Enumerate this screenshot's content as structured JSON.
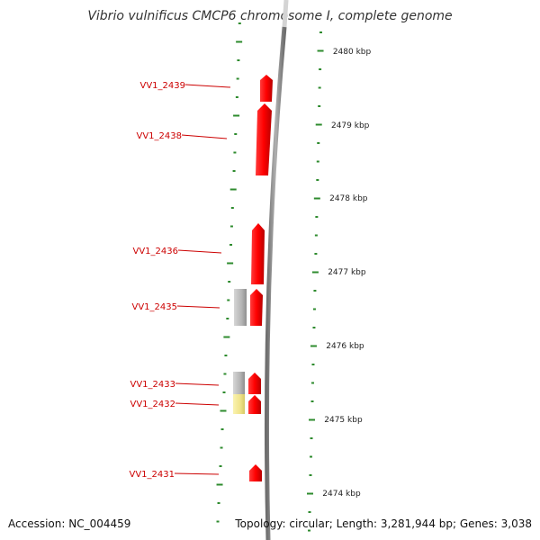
{
  "title": "Vibrio vulnificus CMCP6 chromosome I, complete genome",
  "footer": {
    "accession": "Accession: NC_004459",
    "stats": "Topology: circular; Length: 3,281,944 bp; Genes: 3,038"
  },
  "scale": {
    "unit": "kbp",
    "ticks": [
      "2480 kbp",
      "2479 kbp",
      "2478 kbp",
      "2477 kbp",
      "2476 kbp",
      "2475 kbp",
      "2474 kbp"
    ]
  },
  "genes": [
    {
      "label": "VV1_2439"
    },
    {
      "label": "VV1_2438"
    },
    {
      "label": "VV1_2436"
    },
    {
      "label": "VV1_2435"
    },
    {
      "label": "VV1_2433"
    },
    {
      "label": "VV1_2432"
    },
    {
      "label": "VV1_2431"
    }
  ],
  "colors": {
    "gene": "#ff0000",
    "gene_grey": "#b8b8b8",
    "gene_yellow": "#f3ea8e",
    "tick": "#2e8b2e",
    "label": "#cc0000",
    "backbone": "#8a8a8a"
  }
}
